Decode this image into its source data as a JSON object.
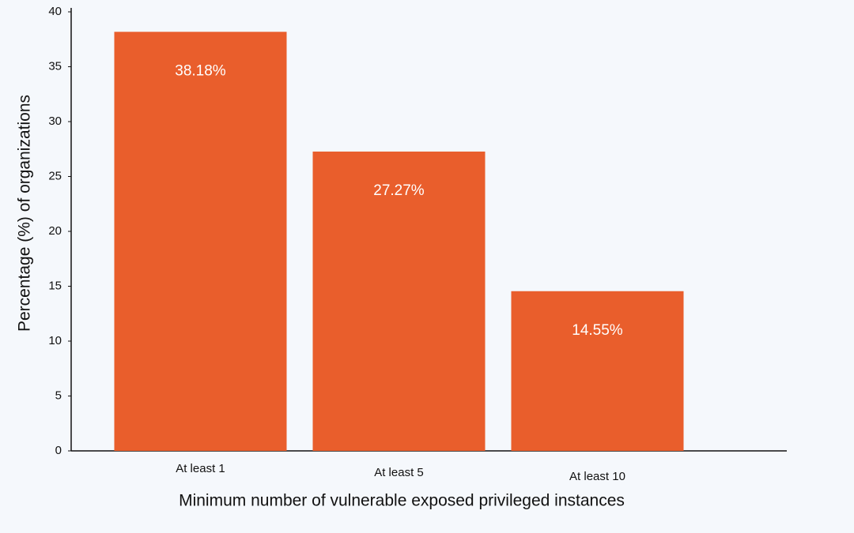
{
  "chart_data": {
    "type": "bar",
    "x_label": "Minimum number of vulnerable exposed privileged instances",
    "y_label": "Percentage (%) of organizations",
    "categories": [
      "At least 1",
      "At least 5",
      "At least 10"
    ],
    "values": [
      38.18,
      27.27,
      14.55
    ],
    "value_labels": [
      "38.18%",
      "27.27%",
      "14.55%"
    ],
    "color": "#e95e2c",
    "ylim": [
      0,
      40
    ],
    "yticks": [
      0,
      5,
      10,
      15,
      20,
      25,
      30,
      35,
      40
    ],
    "grid": false
  }
}
